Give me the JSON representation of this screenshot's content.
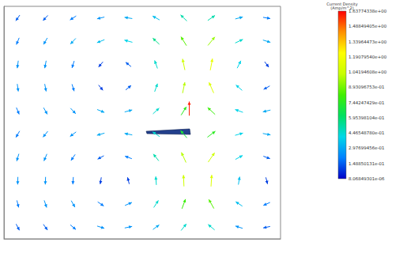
{
  "chart_data": {
    "type": "vector_field",
    "xlim": [
      0,
      100
    ],
    "ylim": [
      0,
      100
    ],
    "tick_labels": false,
    "grid": false,
    "x": [
      5,
      15,
      25,
      35,
      45,
      55,
      65,
      75,
      85,
      95,
      5,
      15,
      25,
      35,
      45,
      55,
      65,
      75,
      85,
      95,
      5,
      15,
      25,
      35,
      45,
      55,
      65,
      75,
      85,
      95,
      5,
      15,
      25,
      35,
      45,
      55,
      65,
      75,
      85,
      95,
      5,
      15,
      25,
      35,
      45,
      55,
      65,
      75,
      85,
      95,
      5,
      15,
      25,
      35,
      45,
      55,
      65,
      75,
      85,
      95,
      5,
      15,
      25,
      35,
      45,
      55,
      65,
      75,
      85,
      95,
      5,
      15,
      25,
      35,
      45,
      55,
      65,
      75,
      85,
      95,
      5,
      15,
      25,
      35,
      45,
      55,
      65,
      75,
      85,
      95,
      5,
      15,
      25,
      35,
      45,
      55,
      65,
      75,
      85,
      95,
      67
    ],
    "y": [
      95,
      95,
      95,
      95,
      95,
      95,
      95,
      95,
      95,
      95,
      85,
      85,
      85,
      85,
      85,
      85,
      85,
      85,
      85,
      85,
      75,
      75,
      75,
      75,
      75,
      75,
      75,
      75,
      75,
      75,
      65,
      65,
      65,
      65,
      65,
      65,
      65,
      65,
      65,
      65,
      55,
      55,
      55,
      55,
      55,
      55,
      55,
      55,
      55,
      55,
      45,
      45,
      45,
      45,
      45,
      45,
      45,
      45,
      45,
      45,
      35,
      35,
      35,
      35,
      35,
      35,
      35,
      35,
      35,
      35,
      25,
      25,
      25,
      25,
      25,
      25,
      25,
      25,
      25,
      25,
      15,
      15,
      15,
      15,
      15,
      15,
      15,
      15,
      15,
      15,
      5,
      5,
      5,
      5,
      5,
      5,
      5,
      5,
      5,
      5,
      56
    ],
    "u": [
      -25,
      -25,
      -25,
      -25,
      -25,
      -25,
      -25,
      23,
      23,
      23,
      -15,
      -15,
      -15,
      -15,
      -15,
      -15,
      -15,
      13,
      13,
      13,
      -5,
      -5,
      -5,
      -5,
      -5,
      -5,
      -5,
      3,
      3,
      3,
      5,
      5,
      5,
      5,
      5,
      5,
      5,
      -7,
      -7,
      -7,
      15,
      15,
      15,
      15,
      15,
      15,
      15,
      -17,
      -17,
      -17,
      -21,
      -21,
      -21,
      -21,
      -21,
      -21,
      -21,
      21,
      21,
      21,
      -11,
      -11,
      -11,
      -11,
      -11,
      -11,
      -11,
      11,
      11,
      11,
      -1,
      -1,
      -1,
      -1,
      -1,
      -1,
      -1,
      1,
      1,
      1,
      9,
      9,
      9,
      9,
      9,
      9,
      9,
      -9,
      -9,
      -9,
      19,
      19,
      19,
      19,
      19,
      19,
      19,
      -19,
      -19,
      -19,
      0
    ],
    "v": [
      -36,
      -26,
      -16,
      -6,
      4,
      14,
      24,
      16,
      6,
      -4,
      -36,
      -26,
      -16,
      -6,
      4,
      14,
      24,
      16,
      6,
      -4,
      -36,
      -26,
      -16,
      -6,
      4,
      14,
      24,
      16,
      6,
      -4,
      -36,
      -26,
      -16,
      -6,
      4,
      14,
      24,
      16,
      6,
      -4,
      -36,
      -26,
      -16,
      -6,
      4,
      14,
      24,
      16,
      6,
      -4,
      -36,
      -26,
      -16,
      -6,
      4,
      14,
      24,
      16,
      6,
      -4,
      -36,
      -26,
      -16,
      -6,
      4,
      14,
      24,
      16,
      6,
      -4,
      -36,
      -26,
      -16,
      -6,
      4,
      14,
      24,
      16,
      6,
      -4,
      -36,
      -26,
      -16,
      -6,
      4,
      14,
      24,
      16,
      6,
      -4,
      -36,
      -26,
      -16,
      -6,
      4,
      14,
      24,
      16,
      6,
      -4,
      1
    ],
    "magnitude": [
      0.15,
      0.15,
      0.2,
      0.25,
      0.3,
      0.35,
      0.5,
      0.5,
      0.3,
      0.2,
      0.2,
      0.25,
      0.3,
      0.35,
      0.4,
      0.55,
      0.85,
      0.95,
      0.45,
      0.3,
      0.25,
      0.25,
      0.2,
      0.1,
      0.15,
      0.45,
      1.05,
      1.15,
      0.4,
      0.1,
      0.25,
      0.25,
      0.2,
      0.1,
      0.15,
      0.45,
      1.0,
      1.1,
      0.4,
      0.15,
      0.2,
      0.25,
      0.25,
      0.3,
      0.3,
      0.45,
      0.75,
      0.8,
      0.4,
      0.3,
      0.2,
      0.25,
      0.25,
      0.3,
      0.3,
      0.45,
      0.7,
      0.75,
      0.4,
      0.3,
      0.25,
      0.25,
      0.2,
      0.15,
      0.2,
      0.5,
      1.0,
      1.05,
      0.4,
      0.15,
      0.25,
      0.25,
      0.2,
      0.1,
      0.1,
      0.45,
      1.05,
      1.1,
      0.35,
      0.1,
      0.2,
      0.25,
      0.25,
      0.2,
      0.25,
      0.45,
      0.8,
      0.85,
      0.35,
      0.2,
      0.15,
      0.15,
      0.2,
      0.25,
      0.25,
      0.3,
      0.45,
      0.45,
      0.25,
      0.15,
      1.6
    ],
    "colorbar": {
      "title": "Current Density",
      "label": "(Amp/m^2)",
      "range": [
        8.06849301e-06,
        1.63774338
      ],
      "ticks": [
        {
          "value": 1.63774338,
          "label": "1.63774338e+00"
        },
        {
          "value": 1.48849405,
          "label": "1.48849405e+00"
        },
        {
          "value": 1.33964473,
          "label": "1.33964473e+00"
        },
        {
          "value": 1.1907954,
          "label": "1.19079540e+00"
        },
        {
          "value": 1.04194608,
          "label": "1.04194608e+00"
        },
        {
          "value": 0.893096753,
          "label": "8.93096753e-01"
        },
        {
          "value": 0.744247429,
          "label": "7.44247429e-01"
        },
        {
          "value": 0.595398104,
          "label": "5.95398104e-01"
        },
        {
          "value": 0.44654878,
          "label": "4.46548780e-01"
        },
        {
          "value": 0.297699456,
          "label": "2.97699456e-01"
        },
        {
          "value": 0.148850131,
          "label": "1.48850131e-01"
        },
        {
          "value": 8.06849301e-06,
          "label": "8.06849301e-06"
        }
      ]
    }
  }
}
